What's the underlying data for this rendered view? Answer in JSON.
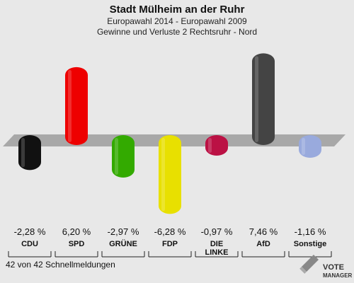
{
  "chart_data": {
    "type": "bar",
    "title": "Stadt Mülheim an der Ruhr",
    "subtitle": "Europawahl 2014 - Europawahl 2009",
    "subtitle2": "Gewinne und Verluste 2 Rechtsruhr - Nord",
    "categories": [
      "CDU",
      "SPD",
      "GRÜNE",
      "FDP",
      "DIE LINKE",
      "AfD",
      "Sonstige"
    ],
    "category_lines": [
      [
        "CDU"
      ],
      [
        "SPD"
      ],
      [
        "GRÜNE"
      ],
      [
        "FDP"
      ],
      [
        "DIE",
        "LINKE"
      ],
      [
        "AfD"
      ],
      [
        "Sonstige"
      ]
    ],
    "values": [
      -2.28,
      6.2,
      -2.97,
      -6.28,
      -0.97,
      7.46,
      -1.16
    ],
    "value_labels": [
      "-2,28 %",
      "6,20 %",
      "-2,97 %",
      "-6,28 %",
      "-0,97 %",
      "7,46 %",
      "-1,16 %"
    ],
    "colors": [
      "#111111",
      "#ee0000",
      "#33aa00",
      "#e8e000",
      "#bb1144",
      "#444444",
      "#99aadd"
    ]
  },
  "footer": "42 von 42 Schnellmeldungen",
  "logo": {
    "line1": "VOTE",
    "line2": "MANAGER"
  }
}
